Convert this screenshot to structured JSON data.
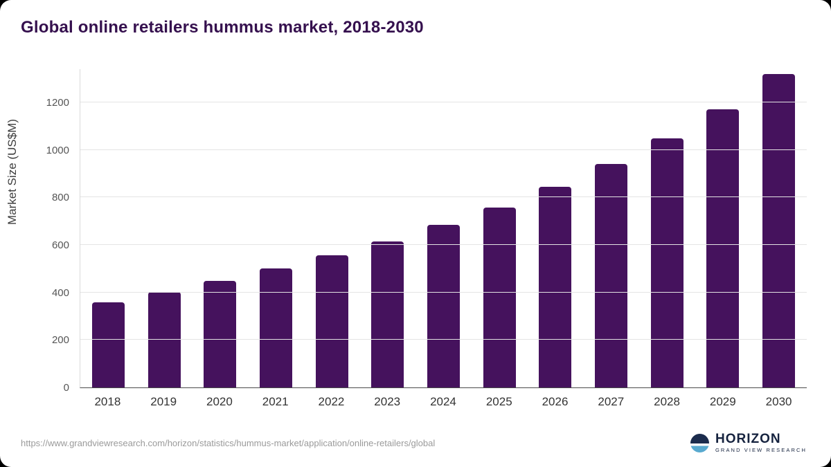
{
  "colors": {
    "bar": "#45125d",
    "title": "#35104e",
    "gridline": "#e4e4e4"
  },
  "chart_data": {
    "type": "bar",
    "title": "Global online retailers hummus market, 2018-2030",
    "categories": [
      "2018",
      "2019",
      "2020",
      "2021",
      "2022",
      "2023",
      "2024",
      "2025",
      "2026",
      "2027",
      "2028",
      "2029",
      "2030"
    ],
    "values": [
      358,
      402,
      448,
      500,
      555,
      616,
      684,
      758,
      845,
      940,
      1048,
      1172,
      1320
    ],
    "xlabel": "",
    "ylabel": "Market Size (US$M)",
    "ylim": [
      0,
      1340
    ],
    "yticks": [
      0,
      200,
      400,
      600,
      800,
      1000,
      1200
    ],
    "grid": true,
    "legend": "none"
  },
  "footer": {
    "source_url": "https://www.grandviewresearch.com/horizon/statistics/hummus-market/application/online-retailers/global",
    "logo_name": "HORIZON",
    "logo_subtitle": "GRAND VIEW RESEARCH"
  }
}
